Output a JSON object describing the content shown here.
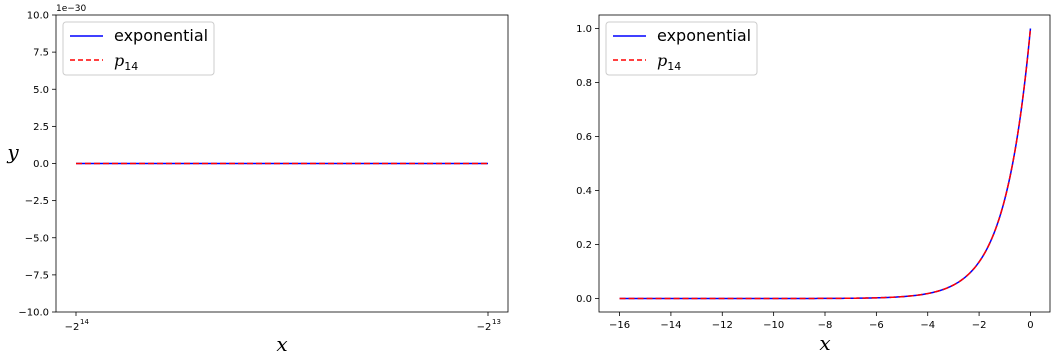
{
  "chart_data": [
    {
      "type": "line",
      "xlabel": "x",
      "ylabel": "y",
      "ylim": [
        -1e-29,
        1e-29
      ],
      "y_offset_label": "1e−30",
      "y_ticks": [
        -10.0,
        -7.5,
        -5.0,
        -2.5,
        0.0,
        2.5,
        5.0,
        7.5,
        10.0
      ],
      "y_tick_labels": [
        "−10.0",
        "−7.5",
        "−5.0",
        "−2.5",
        "0.0",
        "2.5",
        "5.0",
        "7.5",
        "10.0"
      ],
      "x_ticks": [
        -16384,
        -8192
      ],
      "x_tick_labels": [
        {
          "base": "−2",
          "exp": "14"
        },
        {
          "base": "−2",
          "exp": "13"
        }
      ],
      "x_range": [
        -16384,
        -8192
      ],
      "legend": "top-left",
      "series": [
        {
          "name": "exponential",
          "color": "#0000ff",
          "style": "solid",
          "x": [
            -16384,
            -8192
          ],
          "y": [
            0,
            0
          ]
        },
        {
          "name": "p",
          "name_sub": "14",
          "color": "#ff0000",
          "style": "dashed",
          "x": [
            -16384,
            -8192
          ],
          "y": [
            0,
            0
          ]
        }
      ]
    },
    {
      "type": "line",
      "xlabel": "x",
      "ylabel": "",
      "ylim": [
        -0.05,
        1.05
      ],
      "xlim": [
        -16.8,
        0.8
      ],
      "y_ticks": [
        0.0,
        0.2,
        0.4,
        0.6,
        0.8,
        1.0
      ],
      "y_tick_labels": [
        "0.0",
        "0.2",
        "0.4",
        "0.6",
        "0.8",
        "1.0"
      ],
      "x_ticks": [
        -16,
        -14,
        -12,
        -10,
        -8,
        -6,
        -4,
        -2,
        0
      ],
      "x_tick_labels": [
        "−16",
        "−14",
        "−12",
        "−10",
        "−8",
        "−6",
        "−4",
        "−2",
        "0"
      ],
      "legend": "top-left",
      "series": [
        {
          "name": "exponential",
          "color": "#0000ff",
          "style": "solid",
          "function": "exp",
          "x_range": [
            -16,
            0
          ]
        },
        {
          "name": "p",
          "name_sub": "14",
          "color": "#ff0000",
          "style": "dashed",
          "function": "exp",
          "x_range": [
            -16,
            0
          ]
        }
      ]
    }
  ]
}
